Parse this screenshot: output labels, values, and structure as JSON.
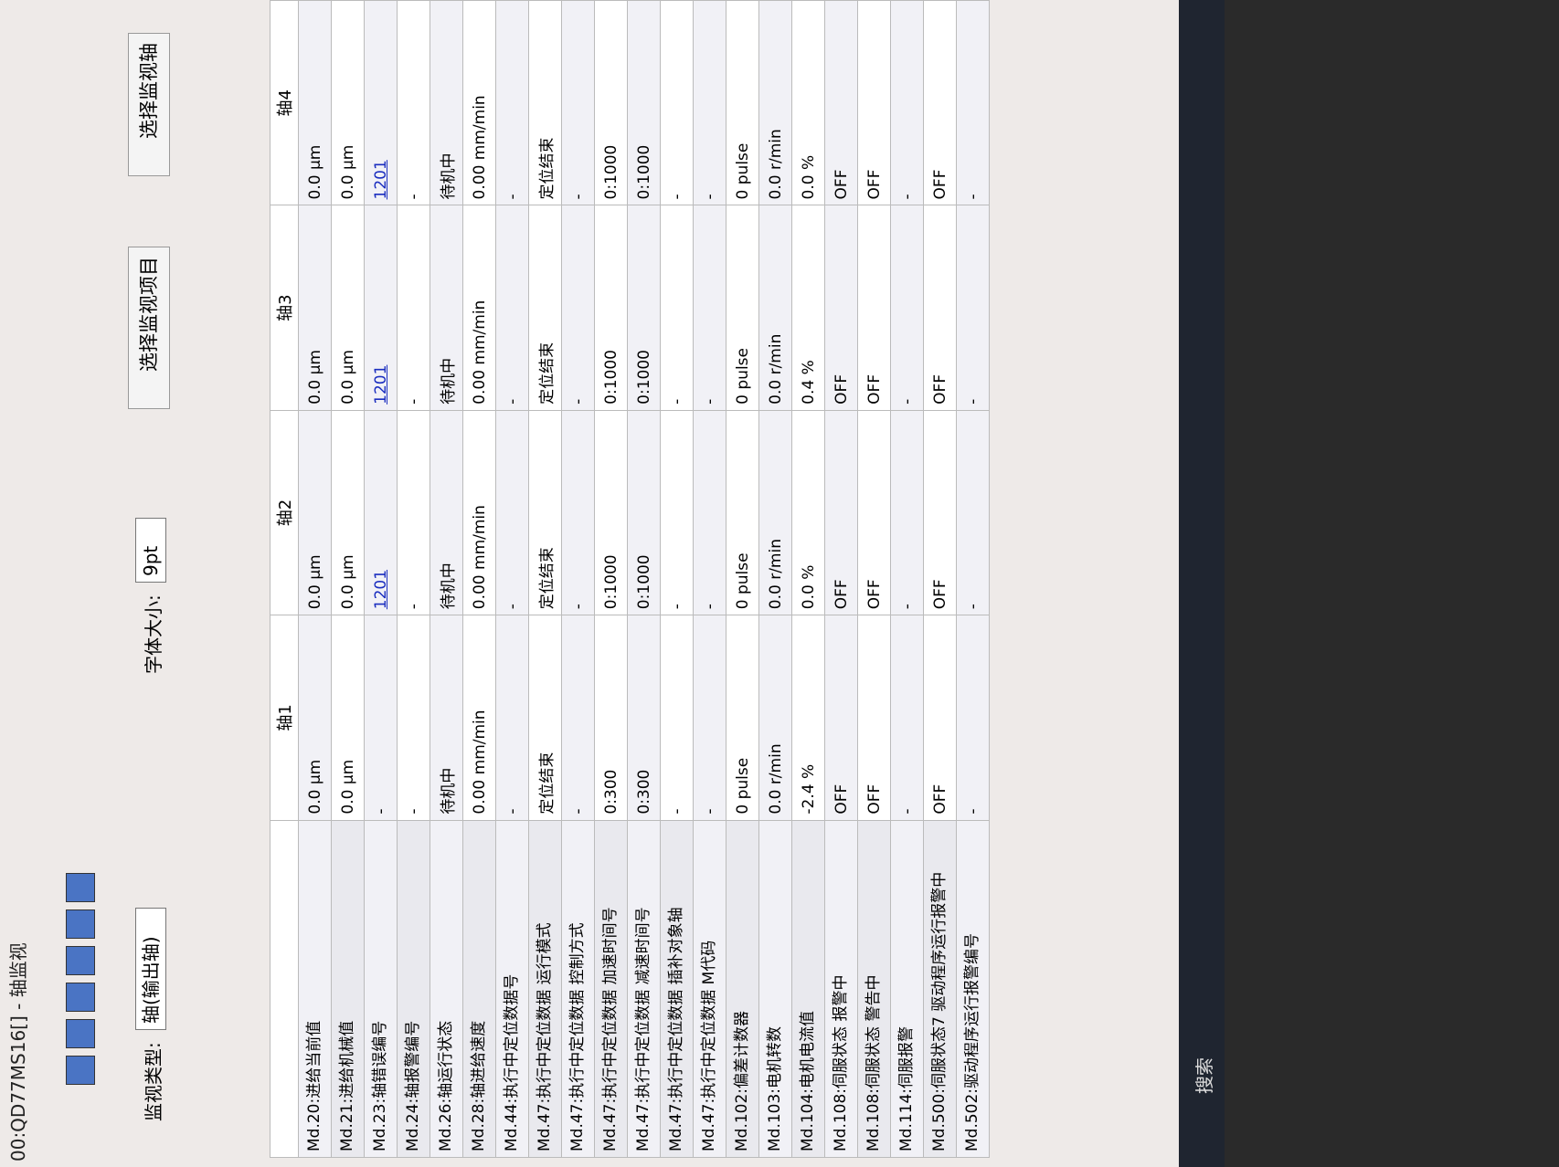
{
  "header": {
    "title": "00:QD77MS16[] - 轴监视",
    "section": "监视"
  },
  "toolbar": {
    "monitor_type_label": "监视类型:",
    "monitor_type": "轴(输出轴)",
    "font_size_label": "字体大小:",
    "font_size": "9pt",
    "select_items": "选择监视项目",
    "select_axes": "选择监视轴"
  },
  "table": {
    "columns": [
      "",
      "轴1",
      "轴2",
      "轴3",
      "轴4"
    ],
    "rows": [
      [
        "Md.20:进给当前值",
        "0.0 µm",
        "0.0 µm",
        "0.0 µm",
        "0.0 µm"
      ],
      [
        "Md.21:进给机械值",
        "0.0 µm",
        "0.0 µm",
        "0.0 µm",
        "0.0 µm"
      ],
      [
        "Md.23:轴错误编号",
        "-",
        "1201",
        "1201",
        "1201"
      ],
      [
        "Md.24:轴报警编号",
        "-",
        "-",
        "-",
        "-"
      ],
      [
        "Md.26:轴运行状态",
        "待机中",
        "待机中",
        "待机中",
        "待机中"
      ],
      [
        "Md.28:轴进给速度",
        "0.00 mm/min",
        "0.00 mm/min",
        "0.00 mm/min",
        "0.00 mm/min"
      ],
      [
        "Md.44:执行中定位数据号",
        "-",
        "-",
        "-",
        "-"
      ],
      [
        "Md.47:执行中定位数据 运行模式",
        "定位结束",
        "定位结束",
        "定位结束",
        "定位结束"
      ],
      [
        "Md.47:执行中定位数据 控制方式",
        "-",
        "-",
        "-",
        "-"
      ],
      [
        "Md.47:执行中定位数据 加速时间号",
        "0:300",
        "0:1000",
        "0:1000",
        "0:1000"
      ],
      [
        "Md.47:执行中定位数据 减速时间号",
        "0:300",
        "0:1000",
        "0:1000",
        "0:1000"
      ],
      [
        "Md.47:执行中定位数据 插补对象轴",
        "-",
        "-",
        "-",
        "-"
      ],
      [
        "Md.47:执行中定位数据 M代码",
        "-",
        "-",
        "-",
        "-"
      ],
      [
        "Md.102:偏差计数器",
        "0 pulse",
        "0 pulse",
        "0 pulse",
        "0 pulse"
      ],
      [
        "Md.103:电机转数",
        "0.0 r/min",
        "0.0 r/min",
        "0.0 r/min",
        "0.0 r/min"
      ],
      [
        "Md.104:电机电流值",
        "-2.4 %",
        "0.0 %",
        "0.4 %",
        "0.0 %"
      ],
      [
        "Md.108:伺服状态 报警中",
        "OFF",
        "OFF",
        "OFF",
        "OFF"
      ],
      [
        "Md.108:伺服状态 警告中",
        "OFF",
        "OFF",
        "OFF",
        "OFF"
      ],
      [
        "Md.114:伺服报警",
        "-",
        "-",
        "-",
        "-"
      ],
      [
        "Md.500:伺服状态7 驱动程序运行报警中",
        "OFF",
        "OFF",
        "OFF",
        "OFF"
      ],
      [
        "Md.502:驱动程序运行报警编号",
        "-",
        "-",
        "-",
        "-"
      ]
    ]
  },
  "taskbar": {
    "search": "搜索"
  }
}
